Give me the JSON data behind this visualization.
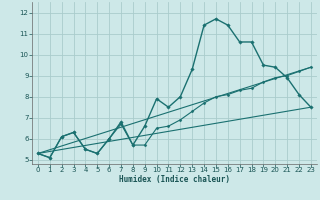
{
  "xlabel": "Humidex (Indice chaleur)",
  "ylabel": "",
  "xlim": [
    -0.5,
    23.5
  ],
  "ylim": [
    4.8,
    12.5
  ],
  "xticks": [
    0,
    1,
    2,
    3,
    4,
    5,
    6,
    7,
    8,
    9,
    10,
    11,
    12,
    13,
    14,
    15,
    16,
    17,
    18,
    19,
    20,
    21,
    22,
    23
  ],
  "yticks": [
    5,
    6,
    7,
    8,
    9,
    10,
    11,
    12
  ],
  "background_color": "#cde8e8",
  "grid_color": "#aacccc",
  "line_color": "#1a7070",
  "lines": [
    {
      "x": [
        0,
        1,
        2,
        3,
        4,
        5,
        6,
        7,
        8,
        9,
        10,
        11,
        12,
        13,
        14,
        15,
        16,
        17,
        18,
        19,
        20,
        21,
        22,
        23
      ],
      "y": [
        5.3,
        5.1,
        6.1,
        6.3,
        5.5,
        5.3,
        6.0,
        6.8,
        5.7,
        6.6,
        7.9,
        7.5,
        8.0,
        9.3,
        11.4,
        11.7,
        11.4,
        10.6,
        10.6,
        9.5,
        9.4,
        8.9,
        8.1,
        7.5
      ],
      "marker": "D",
      "markersize": 1.8,
      "linewidth": 1.0
    },
    {
      "x": [
        0,
        1,
        2,
        3,
        4,
        5,
        6,
        7,
        8,
        9,
        10,
        11,
        12,
        13,
        14,
        15,
        16,
        17,
        18,
        19,
        20,
        21,
        22,
        23
      ],
      "y": [
        5.3,
        5.1,
        6.1,
        6.3,
        5.5,
        5.3,
        6.0,
        6.7,
        5.7,
        5.7,
        6.5,
        6.6,
        6.9,
        7.3,
        7.7,
        8.0,
        8.1,
        8.3,
        8.4,
        8.7,
        8.9,
        9.0,
        9.2,
        9.4
      ],
      "marker": "D",
      "markersize": 1.5,
      "linewidth": 0.8
    },
    {
      "x": [
        0,
        23
      ],
      "y": [
        5.3,
        7.5
      ],
      "marker": null,
      "markersize": 0,
      "linewidth": 0.8
    },
    {
      "x": [
        0,
        23
      ],
      "y": [
        5.3,
        9.4
      ],
      "marker": null,
      "markersize": 0,
      "linewidth": 0.8
    }
  ]
}
